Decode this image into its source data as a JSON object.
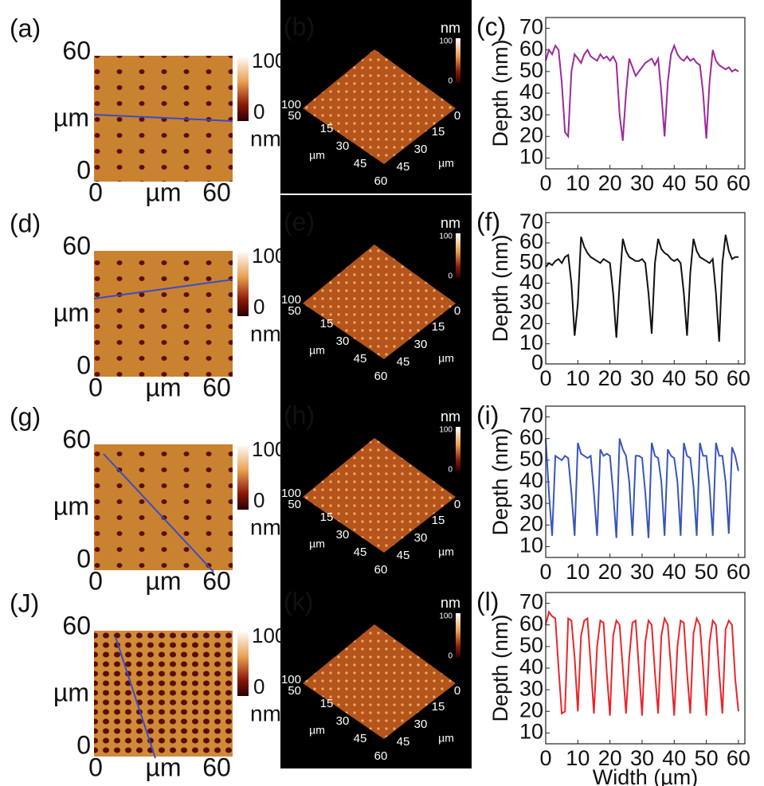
{
  "afm_maps": [
    {
      "label": "(a)",
      "y_ticks": [
        60,
        0
      ],
      "x_ticks": [
        0,
        60
      ],
      "axis_unit": "µm",
      "scale": [
        100,
        0
      ],
      "scale_unit": "nm"
    },
    {
      "label": "(d)",
      "y_ticks": [
        60,
        0
      ],
      "x_ticks": [
        0,
        60
      ],
      "axis_unit": "µm",
      "scale": [
        100,
        0
      ],
      "scale_unit": "nm"
    },
    {
      "label": "(g)",
      "y_ticks": [
        60,
        0
      ],
      "x_ticks": [
        0,
        60
      ],
      "axis_unit": "µm",
      "scale": [
        100,
        0
      ],
      "scale_unit": "nm"
    },
    {
      "label": "(J)",
      "y_ticks": [
        60,
        0
      ],
      "x_ticks": [
        0,
        60
      ],
      "axis_unit": "µm",
      "scale": [
        100,
        0
      ],
      "scale_unit": "nm"
    }
  ],
  "afm_3d": [
    {
      "label": "(b)",
      "scale_unit": "nm",
      "scale": [
        100,
        0
      ],
      "z_ticks": [
        100,
        50
      ],
      "left_ticks": [
        15,
        30,
        45,
        60
      ],
      "right_ticks": [
        0,
        15,
        30,
        45
      ],
      "axis_unit": "µm"
    },
    {
      "label": "(e)",
      "scale_unit": "nm",
      "scale": [
        100,
        0
      ],
      "z_ticks": [
        100,
        50
      ],
      "left_ticks": [
        15,
        30,
        45,
        60
      ],
      "right_ticks": [
        0,
        15,
        30,
        45
      ],
      "axis_unit": "µm"
    },
    {
      "label": "(h)",
      "scale_unit": "nm",
      "scale": [
        100,
        0
      ],
      "z_ticks": [
        100,
        50
      ],
      "left_ticks": [
        15,
        30,
        45,
        60
      ],
      "right_ticks": [
        0,
        15,
        30,
        45
      ],
      "axis_unit": "µm"
    },
    {
      "label": "(k)",
      "scale_unit": "nm",
      "scale": [
        100,
        0
      ],
      "z_ticks": [
        100,
        50
      ],
      "left_ticks": [
        15,
        30,
        45,
        60
      ],
      "right_ticks": [
        0,
        15,
        30,
        45
      ],
      "axis_unit": "µm"
    }
  ],
  "chart_data": [
    {
      "type": "line",
      "panel_label": "(c)",
      "ylabel": "Depth (nm)",
      "x": [
        0,
        1,
        2,
        3,
        4,
        5,
        6,
        7,
        8,
        9,
        10,
        11,
        12,
        13,
        14,
        15,
        16,
        17,
        18,
        19,
        20,
        21,
        22,
        23,
        24,
        25,
        26,
        27,
        28,
        29,
        30,
        31,
        32,
        33,
        34,
        35,
        36,
        37,
        38,
        39,
        40,
        41,
        42,
        43,
        44,
        45,
        46,
        47,
        48,
        49,
        50,
        51,
        52,
        53,
        54,
        55,
        56,
        57,
        58,
        59,
        60
      ],
      "series": [
        {
          "color": "#9b2a9b",
          "values": [
            55,
            60,
            58,
            62,
            60,
            45,
            22,
            20,
            50,
            58,
            56,
            54,
            58,
            60,
            57,
            56,
            55,
            58,
            56,
            57,
            55,
            57,
            54,
            30,
            18,
            40,
            56,
            52,
            48,
            50,
            52,
            54,
            55,
            56,
            53,
            56,
            40,
            20,
            45,
            58,
            62,
            58,
            56,
            55,
            57,
            55,
            56,
            54,
            53,
            40,
            19,
            45,
            60,
            55,
            53,
            52,
            51,
            52,
            50,
            51,
            50
          ]
        }
      ],
      "xlim": [
        0,
        62
      ],
      "ylim": [
        5,
        75
      ],
      "xticks": [
        0,
        10,
        20,
        30,
        40,
        50,
        60
      ],
      "yticks": [
        10,
        20,
        30,
        40,
        50,
        60,
        70
      ]
    },
    {
      "type": "line",
      "panel_label": "(f)",
      "ylabel": "Depth (nm)",
      "x": [
        0,
        1,
        2,
        3,
        4,
        5,
        6,
        7,
        8,
        9,
        10,
        11,
        12,
        13,
        14,
        15,
        16,
        17,
        18,
        19,
        20,
        21,
        22,
        23,
        24,
        25,
        26,
        27,
        28,
        29,
        30,
        31,
        32,
        33,
        34,
        35,
        36,
        37,
        38,
        39,
        40,
        41,
        42,
        43,
        44,
        45,
        46,
        47,
        48,
        49,
        50,
        51,
        52,
        53,
        54,
        55,
        56,
        57,
        58,
        59,
        60
      ],
      "series": [
        {
          "color": "#111111",
          "values": [
            48,
            50,
            49,
            51,
            52,
            50,
            53,
            54,
            40,
            14,
            30,
            63,
            58,
            55,
            53,
            52,
            51,
            50,
            52,
            51,
            50,
            35,
            13,
            40,
            62,
            56,
            53,
            52,
            51,
            51,
            52,
            50,
            35,
            15,
            50,
            62,
            57,
            55,
            54,
            52,
            51,
            52,
            50,
            35,
            14,
            45,
            62,
            56,
            53,
            52,
            51,
            50,
            52,
            35,
            11,
            50,
            64,
            56,
            52,
            53,
            53
          ]
        }
      ],
      "xlim": [
        0,
        62
      ],
      "ylim": [
        0,
        75
      ],
      "xticks": [
        0,
        10,
        20,
        30,
        40,
        50,
        60
      ],
      "yticks": [
        0,
        10,
        20,
        30,
        40,
        50,
        60,
        70
      ]
    },
    {
      "type": "line",
      "panel_label": "(i)",
      "ylabel": "Depth (nm)",
      "x": [
        0,
        1,
        2,
        3,
        4,
        5,
        6,
        7,
        8,
        9,
        10,
        11,
        12,
        13,
        14,
        15,
        16,
        17,
        18,
        19,
        20,
        21,
        22,
        23,
        24,
        25,
        26,
        27,
        28,
        29,
        30,
        31,
        32,
        33,
        34,
        35,
        36,
        37,
        38,
        39,
        40,
        41,
        42,
        43,
        44,
        45,
        46,
        47,
        48,
        49,
        50,
        51,
        52,
        53,
        54,
        55,
        56,
        57,
        58,
        59,
        60
      ],
      "series": [
        {
          "color": "#3a55b8",
          "values": [
            60,
            35,
            15,
            52,
            51,
            50,
            52,
            51,
            35,
            15,
            58,
            53,
            52,
            51,
            52,
            35,
            15,
            55,
            52,
            53,
            52,
            35,
            14,
            60,
            55,
            52,
            40,
            15,
            52,
            52,
            51,
            35,
            14,
            58,
            52,
            51,
            40,
            15,
            55,
            52,
            51,
            40,
            15,
            58,
            52,
            51,
            38,
            15,
            58,
            52,
            52,
            38,
            15,
            58,
            52,
            52,
            40,
            16,
            56,
            52,
            45
          ]
        }
      ],
      "xlim": [
        0,
        62
      ],
      "ylim": [
        5,
        75
      ],
      "xticks": [
        0,
        10,
        20,
        30,
        40,
        50,
        60
      ],
      "yticks": [
        10,
        20,
        30,
        40,
        50,
        60,
        70
      ]
    },
    {
      "type": "line",
      "panel_label": "(l)",
      "ylabel": "Depth (nm)",
      "xlabel": "Width (µm)",
      "x": [
        0,
        1,
        2,
        3,
        4,
        5,
        6,
        7,
        8,
        9,
        10,
        11,
        12,
        13,
        14,
        15,
        16,
        17,
        18,
        19,
        20,
        21,
        22,
        23,
        24,
        25,
        26,
        27,
        28,
        29,
        30,
        31,
        32,
        33,
        34,
        35,
        36,
        37,
        38,
        39,
        40,
        41,
        42,
        43,
        44,
        45,
        46,
        47,
        48,
        49,
        50,
        51,
        52,
        53,
        54,
        55,
        56,
        57,
        58,
        59,
        60
      ],
      "series": [
        {
          "color": "#e8262a",
          "values": [
            60,
            66,
            64,
            63,
            40,
            19,
            20,
            63,
            62,
            45,
            20,
            55,
            62,
            63,
            42,
            19,
            50,
            62,
            61,
            38,
            18,
            55,
            62,
            60,
            40,
            19,
            45,
            61,
            62,
            40,
            18,
            52,
            62,
            60,
            38,
            19,
            55,
            63,
            60,
            40,
            18,
            50,
            62,
            61,
            38,
            19,
            56,
            63,
            60,
            40,
            18,
            52,
            62,
            60,
            38,
            19,
            58,
            62,
            60,
            35,
            20
          ]
        }
      ],
      "xlim": [
        0,
        62
      ],
      "ylim": [
        5,
        75
      ],
      "xticks": [
        0,
        10,
        20,
        30,
        40,
        50,
        60
      ],
      "yticks": [
        10,
        20,
        30,
        40,
        50,
        60,
        70
      ]
    }
  ]
}
